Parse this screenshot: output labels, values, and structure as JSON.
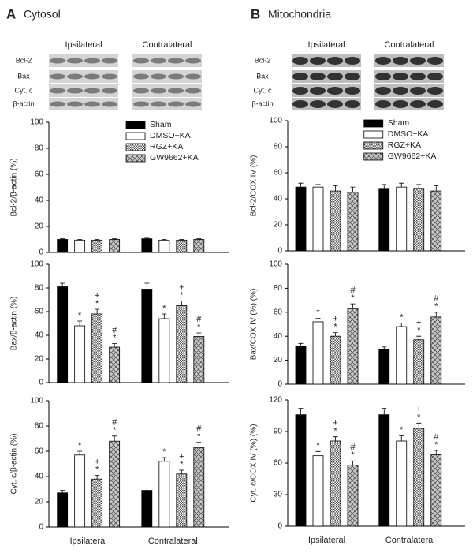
{
  "panels": [
    {
      "letter": "A",
      "title": "Cytosol",
      "blot_groups": [
        "Ipsilateral",
        "Contralateral"
      ],
      "blot_rows": [
        "Bcl-2",
        "Bax",
        "Cyt. c",
        "β-actin"
      ]
    },
    {
      "letter": "B",
      "title": "Mitochondria",
      "blot_groups": [
        "Ipsilateral",
        "Contralateral"
      ],
      "blot_rows": [
        "Bcl-2",
        "Bax",
        "Cyt. c",
        "β-actin"
      ]
    }
  ],
  "chart_data": [
    {
      "type": "bar",
      "ylabel": "Bcl-2/β-actin (%)",
      "categories": [
        null,
        null
      ],
      "ylim": [
        0,
        100
      ],
      "yticks": [
        0,
        20,
        40,
        60,
        80,
        100
      ],
      "legend": "upper right",
      "series": [
        {
          "name": "Sham",
          "color": "#000000",
          "pattern": "solid",
          "values": [
            10,
            10.5
          ],
          "errors": [
            0.5,
            0.5
          ],
          "markers": [
            [],
            []
          ]
        },
        {
          "name": "DMSO+KA",
          "color": "#ffffff",
          "pattern": "solid",
          "values": [
            9.5,
            9.5
          ],
          "errors": [
            0.5,
            0.5
          ],
          "markers": [
            [],
            []
          ]
        },
        {
          "name": "RGZ+KA",
          "color": "#ffffff",
          "pattern": "checker",
          "values": [
            9.5,
            9.5
          ],
          "errors": [
            0.5,
            0.5
          ],
          "markers": [
            [],
            []
          ]
        },
        {
          "name": "GW9662+KA",
          "color": "#c8c8c8",
          "pattern": "crosshatch",
          "values": [
            10,
            10
          ],
          "errors": [
            0.5,
            0.5
          ],
          "markers": [
            [],
            []
          ]
        }
      ]
    },
    {
      "type": "bar",
      "ylabel": "Bax/β-actin (%)",
      "categories": [
        null,
        null
      ],
      "ylim": [
        0,
        100
      ],
      "yticks": [
        0,
        20,
        40,
        60,
        80,
        100
      ],
      "series": [
        {
          "color": "#000000",
          "pattern": "solid",
          "values": [
            81,
            79
          ],
          "errors": [
            3,
            5
          ],
          "markers": [
            [],
            []
          ]
        },
        {
          "color": "#ffffff",
          "pattern": "solid",
          "values": [
            48,
            54
          ],
          "errors": [
            4,
            4
          ],
          "markers": [
            [
              "*"
            ],
            [
              "*"
            ]
          ]
        },
        {
          "color": "#ffffff",
          "pattern": "checker",
          "values": [
            58,
            65
          ],
          "errors": [
            4,
            4
          ],
          "markers": [
            [
              "+",
              "*"
            ],
            [
              "+",
              "*"
            ]
          ]
        },
        {
          "color": "#c8c8c8",
          "pattern": "crosshatch",
          "values": [
            30,
            39
          ],
          "errors": [
            3,
            3
          ],
          "markers": [
            [
              "#",
              "*"
            ],
            [
              "#",
              "*"
            ]
          ]
        }
      ]
    },
    {
      "type": "bar",
      "ylabel": "Cyt. c/β-actin (%)",
      "categories": [
        "Ipsilateral",
        "Contralateral"
      ],
      "ylim": [
        0,
        100
      ],
      "yticks": [
        0,
        20,
        40,
        60,
        80,
        100
      ],
      "series": [
        {
          "color": "#000000",
          "pattern": "solid",
          "values": [
            27,
            29
          ],
          "errors": [
            2,
            2
          ],
          "markers": [
            [],
            []
          ]
        },
        {
          "color": "#ffffff",
          "pattern": "solid",
          "values": [
            57,
            52
          ],
          "errors": [
            3,
            3
          ],
          "markers": [
            [
              "*"
            ],
            [
              "*"
            ]
          ]
        },
        {
          "color": "#ffffff",
          "pattern": "checker",
          "values": [
            38,
            42
          ],
          "errors": [
            3,
            3
          ],
          "markers": [
            [
              "+",
              "*"
            ],
            [
              "+",
              "*"
            ]
          ]
        },
        {
          "color": "#c8c8c8",
          "pattern": "crosshatch",
          "values": [
            68,
            63
          ],
          "errors": [
            4,
            4
          ],
          "markers": [
            [
              "#",
              "*"
            ],
            [
              "#",
              "*"
            ]
          ]
        }
      ]
    },
    {
      "type": "bar",
      "ylabel": "Bcl-2/COX IV (%)",
      "categories": [
        null,
        null
      ],
      "ylim": [
        0,
        100
      ],
      "yticks": [
        0,
        20,
        40,
        60,
        80,
        100
      ],
      "legend": "upper right",
      "series": [
        {
          "name": "Sham",
          "color": "#000000",
          "pattern": "solid",
          "values": [
            49,
            48
          ],
          "errors": [
            3,
            3
          ],
          "markers": [
            [],
            []
          ]
        },
        {
          "name": "DMSO+KA",
          "color": "#ffffff",
          "pattern": "solid",
          "values": [
            49,
            49
          ],
          "errors": [
            2,
            3
          ],
          "markers": [
            [],
            []
          ]
        },
        {
          "name": "RGZ+KA",
          "color": "#ffffff",
          "pattern": "checker",
          "values": [
            46,
            48
          ],
          "errors": [
            4,
            3
          ],
          "markers": [
            [],
            []
          ]
        },
        {
          "name": "GW9662+KA",
          "color": "#c8c8c8",
          "pattern": "crosshatch",
          "values": [
            45,
            46
          ],
          "errors": [
            4,
            4
          ],
          "markers": [
            [],
            []
          ]
        }
      ]
    },
    {
      "type": "bar",
      "ylabel": "Bax/COX IV (%) (%)",
      "categories": [
        null,
        null
      ],
      "ylim": [
        0,
        100
      ],
      "yticks": [
        0,
        20,
        40,
        60,
        80,
        100
      ],
      "series": [
        {
          "color": "#000000",
          "pattern": "solid",
          "values": [
            32,
            29
          ],
          "errors": [
            2,
            2
          ],
          "markers": [
            [],
            []
          ]
        },
        {
          "color": "#ffffff",
          "pattern": "solid",
          "values": [
            52,
            48
          ],
          "errors": [
            3,
            3
          ],
          "markers": [
            [
              "*"
            ],
            [
              "*"
            ]
          ]
        },
        {
          "color": "#ffffff",
          "pattern": "checker",
          "values": [
            40,
            37
          ],
          "errors": [
            3,
            3
          ],
          "markers": [
            [
              "+",
              "*"
            ],
            [
              "+",
              "*"
            ]
          ]
        },
        {
          "color": "#c8c8c8",
          "pattern": "crosshatch",
          "values": [
            63,
            56
          ],
          "errors": [
            4,
            4
          ],
          "markers": [
            [
              "#",
              "*"
            ],
            [
              "#",
              "*"
            ]
          ]
        }
      ]
    },
    {
      "type": "bar",
      "ylabel": "Cyt. c/COX IV (%) (%)",
      "categories": [
        "Ipsilateral",
        "Contralateral"
      ],
      "ylim": [
        0,
        120
      ],
      "yticks": [
        0,
        30,
        60,
        90,
        120
      ],
      "series": [
        {
          "color": "#000000",
          "pattern": "solid",
          "values": [
            106,
            106
          ],
          "errors": [
            6,
            6
          ],
          "markers": [
            [],
            []
          ]
        },
        {
          "color": "#ffffff",
          "pattern": "solid",
          "values": [
            67,
            81
          ],
          "errors": [
            4,
            5
          ],
          "markers": [
            [
              "*"
            ],
            [
              "*"
            ]
          ]
        },
        {
          "color": "#ffffff",
          "pattern": "checker",
          "values": [
            81,
            93
          ],
          "errors": [
            4,
            5
          ],
          "markers": [
            [
              "+",
              "*"
            ],
            [
              "+",
              "*"
            ]
          ]
        },
        {
          "color": "#c8c8c8",
          "pattern": "crosshatch",
          "values": [
            58,
            68
          ],
          "errors": [
            4,
            4
          ],
          "markers": [
            [
              "#",
              "*"
            ],
            [
              "#",
              "*"
            ]
          ]
        }
      ]
    }
  ]
}
